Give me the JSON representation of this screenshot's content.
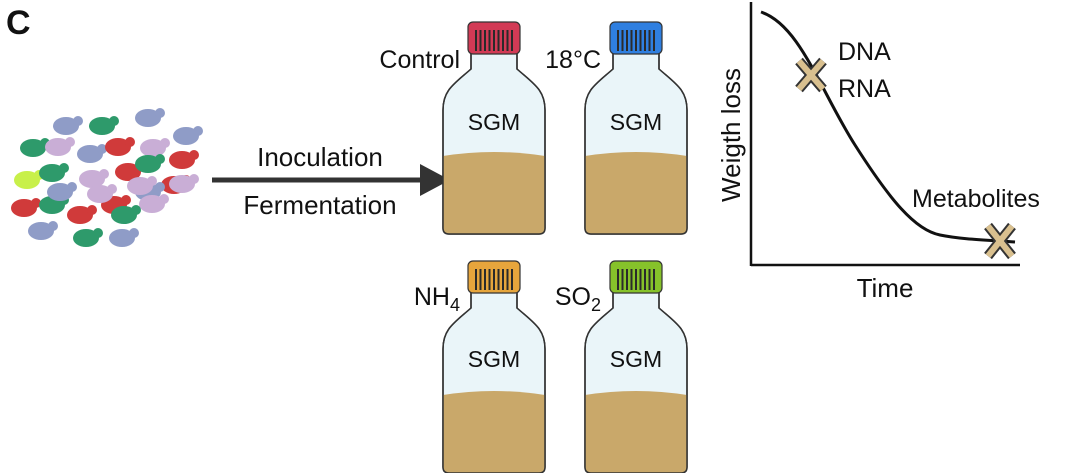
{
  "panel_label": "C",
  "arrow": {
    "label_top": "Inoculation",
    "label_bottom": "Fermentation"
  },
  "bottles": [
    {
      "condition": "Control",
      "medium": "SGM",
      "cap_color": "#d23a55"
    },
    {
      "condition": "18°C",
      "medium": "SGM",
      "cap_color": "#2f7fe0"
    },
    {
      "condition_main": "NH",
      "condition_sub": "4",
      "medium": "SGM",
      "cap_color": "#e6a53c"
    },
    {
      "condition_main": "SO",
      "condition_sub": "2",
      "medium": "SGM",
      "cap_color": "#86c22a"
    }
  ],
  "colors": {
    "liquid": "#c9a86a",
    "bottle_glass": "#eaf5f9",
    "bottle_outline": "#333333",
    "marker": "#d9c08f",
    "yeast": [
      "#2e9a6b",
      "#8f9cc7",
      "#c9aed6",
      "#d03a3a",
      "#c8f04a"
    ]
  },
  "graph": {
    "ylabel": "Weigth loss",
    "xlabel": "Time",
    "marker_top_line1": "DNA",
    "marker_top_line2": "RNA",
    "marker_bottom": "Metabolites"
  }
}
